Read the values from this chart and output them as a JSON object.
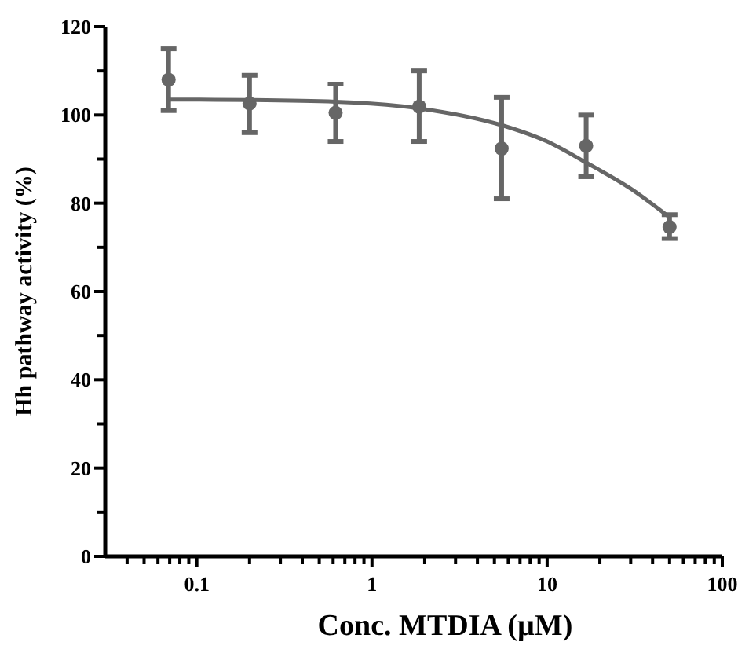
{
  "chart_data": {
    "type": "scatter",
    "xlabel": "Conc. MTDIA (µM)",
    "ylabel": "Hh pathway activity (%)",
    "log": "x",
    "series": [
      {
        "marker": "circle",
        "color": "#666666",
        "x": [
          0.069,
          0.2,
          0.62,
          1.86,
          5.5,
          16.7,
          50
        ],
        "values": [
          108,
          102.6,
          100.5,
          101.9,
          92.4,
          93,
          74.6
        ],
        "errors": [
          [
            101,
            115
          ],
          [
            96,
            109
          ],
          [
            94,
            107
          ],
          [
            94,
            110
          ],
          [
            81,
            104
          ],
          [
            86,
            100
          ],
          [
            72,
            77.4
          ]
        ]
      },
      {
        "type": "line",
        "color": "#666666",
        "line_style": "solid",
        "x": [
          0.069,
          0.2,
          0.62,
          1.86,
          5.5,
          10,
          16.7,
          30,
          50
        ],
        "values": [
          103.5,
          103.4,
          103,
          101.5,
          97.7,
          94,
          89.2,
          83.3,
          76.8
        ]
      }
    ],
    "xlim": [
      0.03,
      100
    ],
    "xticks": [
      {
        "value": 0.04,
        "label": null
      },
      {
        "value": 0.05,
        "label": null
      },
      {
        "value": 0.06,
        "label": null
      },
      {
        "value": 0.07,
        "label": null
      },
      {
        "value": 0.08,
        "label": null
      },
      {
        "value": 0.09,
        "label": null
      },
      0.1,
      {
        "value": 0.2,
        "label": null
      },
      {
        "value": 0.3,
        "label": null
      },
      {
        "value": 0.4,
        "label": null
      },
      {
        "value": 0.5,
        "label": null
      },
      {
        "value": 0.6,
        "label": null
      },
      {
        "value": 0.7,
        "label": null
      },
      {
        "value": 0.8,
        "label": null
      },
      {
        "value": 0.9,
        "label": null
      },
      1,
      {
        "value": 2,
        "label": null
      },
      {
        "value": 3,
        "label": null
      },
      {
        "value": 4,
        "label": null
      },
      {
        "value": 5,
        "label": null
      },
      {
        "value": 6,
        "label": null
      },
      {
        "value": 7,
        "label": null
      },
      {
        "value": 8,
        "label": null
      },
      {
        "value": 9,
        "label": null
      },
      10,
      {
        "value": 20,
        "label": null
      },
      {
        "value": 30,
        "label": null
      },
      {
        "value": 40,
        "label": null
      },
      {
        "value": 50,
        "label": null
      },
      {
        "value": 60,
        "label": null
      },
      {
        "value": 70,
        "label": null
      },
      {
        "value": 80,
        "label": null
      },
      {
        "value": 90,
        "label": null
      },
      100
    ],
    "ylim": [
      0,
      120
    ],
    "yticks": [
      0,
      {
        "value": 10,
        "label": null
      },
      20,
      {
        "value": 30,
        "label": null
      },
      40,
      {
        "value": 50,
        "label": null
      },
      60,
      {
        "value": 70,
        "label": null
      },
      80,
      {
        "value": 90,
        "label": null
      },
      100,
      {
        "value": 110,
        "label": null
      },
      120
    ],
    "grid": false
  }
}
